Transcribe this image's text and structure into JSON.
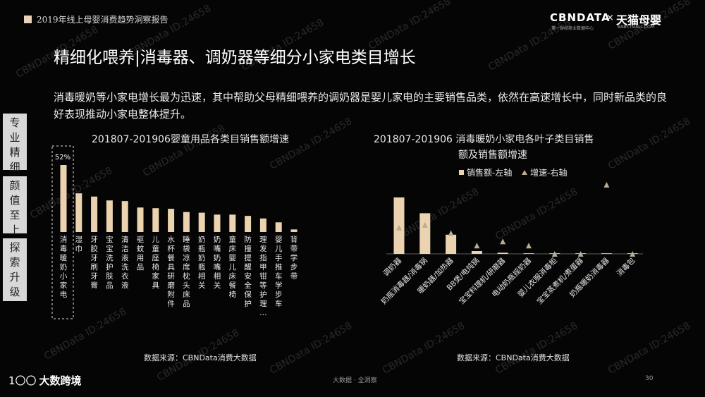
{
  "header": {
    "report_title": "2019年线上母婴消费趋势洞察报告",
    "brand_logo": "CBNDATA",
    "brand_logo_sub": "第一财经商业数据中心",
    "brand_separator": "×",
    "partner_logo": "天猫母婴",
    "partner_logo_sub": "BABY.TMALL.COM"
  },
  "title": "精细化喂养|消毒器、调奶器等细分小家电类目增长",
  "summary": "消毒暖奶等小家电增长最为迅速，其中帮助父母精细喂养的调奶器是婴儿家电的主要销售品类，依然在高速增长中，同时新品类的良好表现推动小家电整体提升。",
  "side_tabs": [
    "专业精细",
    "颜值至上",
    "探索升级"
  ],
  "watermark_text": "CBNData ID:24658",
  "colors": {
    "accent": "#ecd3b0",
    "triangle": "#b9ac93",
    "background": "#050505"
  },
  "chart_data": [
    {
      "type": "bar",
      "title": "201807-201906婴童用品各类目销售额增速",
      "highlight_label": "52%",
      "categories": [
        "消毒暖奶小家电",
        "湿巾",
        "牙胶牙刷牙膏",
        "宝宝洗护肤品",
        "清洁液洗衣液",
        "驱蚊用品",
        "儿童座椅家具",
        "水杯餐具研磨附件",
        "睡袋凉席枕头床品",
        "奶瓶奶瓶相关",
        "奶嘴奶嘴相关",
        "童床婴儿床餐椅",
        "防撞提醒安全保护",
        "理发指甲钳等护理…",
        "婴儿手推车学步车",
        "背带学步带"
      ],
      "values": [
        52,
        30,
        27.5,
        24.5,
        24,
        19,
        18.5,
        18,
        15.5,
        15,
        13.5,
        13.5,
        12.5,
        10.5,
        7.5,
        2
      ],
      "xlabel": "",
      "ylabel": "",
      "grid": false,
      "source": "数据来源：CBNData消费大数据"
    },
    {
      "type": "bar",
      "title_line1": "201807-201906 消毒暖奶小家电各叶子类目销售",
      "title_line2": "额及销售额增速",
      "categories": [
        "调奶器",
        "奶瓶消毒器/消毒锅",
        "暖奶器/加热器",
        "BB煲/电炖锅",
        "宝宝料理机/研磨器",
        "电动奶瓶摇奶器",
        "婴儿衣服消毒柜",
        "宝宝蒸煮机/煮蛋器",
        "奶瓶暖奶消毒器",
        "消毒包"
      ],
      "series": [
        {
          "name": "销售额-左轴",
          "type": "bar",
          "values": [
            100,
            72,
            34,
            5,
            2,
            1,
            0.5,
            0.5,
            0.3,
            0.2
          ]
        },
        {
          "name": "增速-右轴",
          "type": "scatter",
          "values": [
            38,
            42,
            30,
            12,
            18,
            12,
            0,
            0,
            100,
            0
          ]
        }
      ],
      "legend": "top",
      "grid": false,
      "source": "数据来源：CBNData消费大数据"
    }
  ],
  "footer": {
    "center_text": "大数据 · 全洞察",
    "page_number": "30",
    "logo_text": "大数跨境",
    "logo_mark": "1〇〇"
  }
}
